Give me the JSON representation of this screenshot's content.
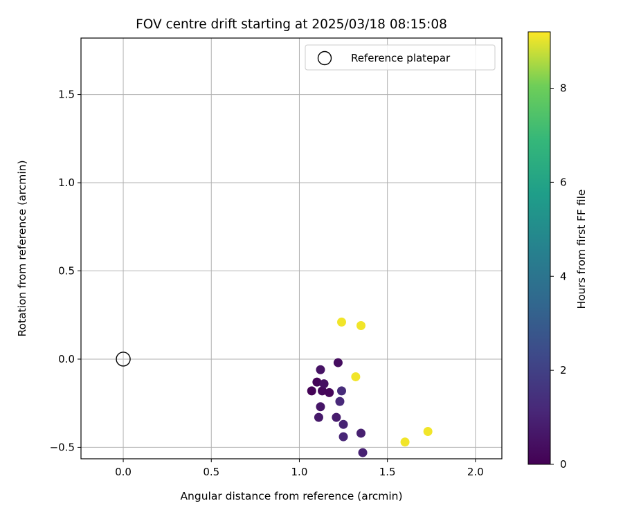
{
  "chart_data": {
    "type": "scatter",
    "title": "FOV centre drift starting at 2025/03/18 08:15:08",
    "xlabel": "Angular distance from reference (arcmin)",
    "ylabel": "Rotation from reference (arcmin)",
    "xlim": [
      -0.24,
      2.15
    ],
    "ylim": [
      -0.565,
      1.82
    ],
    "xticks": [
      0.0,
      0.5,
      1.0,
      1.5,
      2.0
    ],
    "xtick_labels": [
      "0.0",
      "0.5",
      "1.0",
      "1.5",
      "2.0"
    ],
    "yticks": [
      -0.5,
      0.0,
      0.5,
      1.0,
      1.5
    ],
    "ytick_labels": [
      "−0.5",
      "0.0",
      "0.5",
      "1.0",
      "1.5"
    ],
    "grid": true,
    "legend_position": "upper right",
    "reference": {
      "name": "Reference platepar",
      "x": 0.0,
      "y": 0.0,
      "marker": "hollow-circle",
      "color": "#000000"
    },
    "colorbar": {
      "label": "Hours from first FF file",
      "range": [
        0,
        9.2
      ],
      "ticks": [
        0,
        2,
        4,
        6,
        8
      ],
      "colormap": "viridis"
    },
    "points": [
      {
        "x": 1.07,
        "y": -0.18,
        "hours": 0.05
      },
      {
        "x": 1.1,
        "y": -0.13,
        "hours": 0.1
      },
      {
        "x": 1.13,
        "y": -0.18,
        "hours": 0.2
      },
      {
        "x": 1.17,
        "y": -0.19,
        "hours": 0.15
      },
      {
        "x": 1.14,
        "y": -0.14,
        "hours": 0.4
      },
      {
        "x": 1.12,
        "y": -0.06,
        "hours": 0.5
      },
      {
        "x": 1.12,
        "y": -0.27,
        "hours": 0.6
      },
      {
        "x": 1.11,
        "y": -0.33,
        "hours": 0.7
      },
      {
        "x": 1.22,
        "y": -0.02,
        "hours": 0.35
      },
      {
        "x": 1.21,
        "y": -0.33,
        "hours": 0.8
      },
      {
        "x": 1.23,
        "y": -0.24,
        "hours": 1.2
      },
      {
        "x": 1.24,
        "y": -0.18,
        "hours": 1.3
      },
      {
        "x": 1.25,
        "y": -0.37,
        "hours": 1.0
      },
      {
        "x": 1.25,
        "y": -0.44,
        "hours": 1.1
      },
      {
        "x": 1.35,
        "y": -0.42,
        "hours": 0.9
      },
      {
        "x": 1.36,
        "y": -0.53,
        "hours": 0.95
      },
      {
        "x": 1.24,
        "y": 0.21,
        "hours": 9.1
      },
      {
        "x": 1.35,
        "y": 0.19,
        "hours": 9.1
      },
      {
        "x": 1.32,
        "y": -0.1,
        "hours": 9.1
      },
      {
        "x": 1.6,
        "y": -0.47,
        "hours": 9.1
      },
      {
        "x": 1.73,
        "y": -0.41,
        "hours": 9.1
      }
    ]
  }
}
